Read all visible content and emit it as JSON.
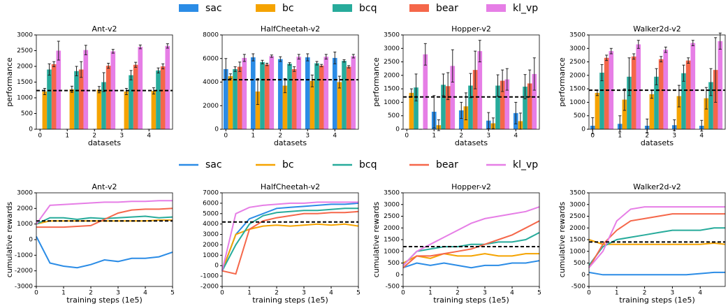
{
  "chart_data": [
    {
      "type": "bar",
      "title": "Ant-v2",
      "xlabel": "datasets",
      "ylabel": "performance",
      "categories": [
        "0",
        "1",
        "2",
        "3",
        "4"
      ],
      "ylim": [
        0,
        3000
      ],
      "yticks": [
        0,
        500,
        1000,
        1500,
        2000,
        2500,
        3000
      ],
      "hline": 1230,
      "series": [
        {
          "name": "sac",
          "color": "#2b8ce6",
          "values": [
            0,
            0,
            0,
            0,
            0
          ],
          "errors": [
            0,
            0,
            0,
            0,
            0
          ]
        },
        {
          "name": "bc",
          "color": "#f5a300",
          "values": [
            1200,
            1270,
            1260,
            1200,
            1220
          ],
          "errors": [
            100,
            100,
            100,
            100,
            100
          ]
        },
        {
          "name": "bcq",
          "color": "#27ab9b",
          "values": [
            1900,
            1850,
            1500,
            1720,
            1870
          ],
          "errors": [
            180,
            150,
            300,
            150,
            80
          ]
        },
        {
          "name": "bear",
          "color": "#f5674a",
          "values": [
            2070,
            1900,
            2020,
            2050,
            2000
          ],
          "errors": [
            80,
            250,
            80,
            80,
            80
          ]
        },
        {
          "name": "kl_vp",
          "color": "#e67ee6",
          "values": [
            2500,
            2520,
            2480,
            2620,
            2650
          ],
          "errors": [
            300,
            150,
            60,
            60,
            70
          ]
        }
      ]
    },
    {
      "type": "bar",
      "title": "HalfCheetah-v2",
      "xlabel": "datasets",
      "ylabel": "",
      "categories": [
        "0",
        "1",
        "2",
        "3",
        "4"
      ],
      "ylim": [
        0,
        8000
      ],
      "yticks": [
        0,
        2000,
        4000,
        6000,
        8000
      ],
      "hline": 4200,
      "series": [
        {
          "name": "sac",
          "color": "#2b8ce6",
          "values": [
            5100,
            6100,
            5950,
            6100,
            6050
          ],
          "errors": [
            900,
            300,
            200,
            300,
            500
          ]
        },
        {
          "name": "bc",
          "color": "#f5a300",
          "values": [
            4500,
            3200,
            3700,
            4100,
            4000
          ],
          "errors": [
            200,
            1100,
            600,
            500,
            500
          ]
        },
        {
          "name": "bcq",
          "color": "#27ab9b",
          "values": [
            5100,
            5700,
            5550,
            5600,
            5800
          ],
          "errors": [
            200,
            150,
            100,
            150,
            100
          ]
        },
        {
          "name": "bear",
          "color": "#f5674a",
          "values": [
            5300,
            5500,
            5100,
            5400,
            5300
          ],
          "errors": [
            400,
            100,
            200,
            100,
            100
          ]
        },
        {
          "name": "kl_vp",
          "color": "#e67ee6",
          "values": [
            6050,
            6200,
            6150,
            6150,
            6200
          ],
          "errors": [
            300,
            100,
            200,
            200,
            150
          ]
        }
      ]
    },
    {
      "type": "bar",
      "title": "Hopper-v2",
      "xlabel": "datasets",
      "ylabel": "performance",
      "categories": [
        "0",
        "1",
        "2",
        "3",
        "4"
      ],
      "ylim": [
        0,
        3500
      ],
      "yticks": [
        0,
        500,
        1000,
        1500,
        2000,
        2500,
        3000,
        3500
      ],
      "hline": 1200,
      "series": [
        {
          "name": "sac",
          "color": "#2b8ce6",
          "values": [
            0,
            650,
            700,
            320,
            600
          ],
          "errors": [
            0,
            600,
            300,
            300,
            400
          ]
        },
        {
          "name": "bc",
          "color": "#f5a300",
          "values": [
            1350,
            150,
            850,
            220,
            300
          ],
          "errors": [
            150,
            200,
            500,
            200,
            300
          ]
        },
        {
          "name": "bcq",
          "color": "#27ab9b",
          "values": [
            1550,
            1650,
            1620,
            1620,
            1580
          ],
          "errors": [
            500,
            400,
            450,
            400,
            450
          ]
        },
        {
          "name": "bear",
          "color": "#f5674a",
          "values": [
            0,
            1600,
            2200,
            1800,
            1700
          ],
          "errors": [
            0,
            500,
            700,
            400,
            500
          ]
        },
        {
          "name": "kl_vp",
          "color": "#e67ee6",
          "values": [
            2780,
            2350,
            2900,
            1850,
            2050
          ],
          "errors": [
            400,
            600,
            400,
            400,
            600
          ]
        }
      ]
    },
    {
      "type": "bar",
      "title": "Walker2d-v2",
      "xlabel": "datasets",
      "ylabel": "performance",
      "categories": [
        "0",
        "1",
        "2",
        "3",
        "4"
      ],
      "ylim": [
        0,
        3500
      ],
      "yticks": [
        0,
        500,
        1000,
        1500,
        2000,
        2500,
        3000,
        3500
      ],
      "hline": 1450,
      "series": [
        {
          "name": "sac",
          "color": "#2b8ce6",
          "values": [
            130,
            200,
            130,
            150,
            130
          ],
          "errors": [
            300,
            300,
            250,
            200,
            200
          ]
        },
        {
          "name": "bc",
          "color": "#f5a300",
          "values": [
            1350,
            1100,
            1300,
            1230,
            1150
          ],
          "errors": [
            100,
            400,
            150,
            400,
            400
          ]
        },
        {
          "name": "bcq",
          "color": "#27ab9b",
          "values": [
            2100,
            1950,
            1950,
            2080,
            1750
          ],
          "errors": [
            300,
            700,
            300,
            300,
            500
          ]
        },
        {
          "name": "bear",
          "color": "#f5674a",
          "values": [
            2650,
            2700,
            2600,
            2550,
            2200
          ],
          "errors": [
            100,
            100,
            100,
            100,
            1200
          ]
        },
        {
          "name": "kl_vp",
          "color": "#e67ee6",
          "values": [
            2900,
            3150,
            2950,
            3200,
            3270
          ],
          "errors": [
            100,
            150,
            100,
            100,
            300
          ]
        }
      ]
    },
    {
      "type": "line",
      "title": "Ant-v2",
      "xlabel": "training steps (1e5)",
      "ylabel": "cumulative rewards",
      "x": [
        0,
        0.5,
        1,
        1.5,
        2,
        2.5,
        3,
        3.5,
        4,
        4.5,
        5
      ],
      "xlim": [
        0,
        5
      ],
      "xticks": [
        0,
        1,
        2,
        3,
        4,
        5
      ],
      "ylim": [
        -3000,
        3000
      ],
      "yticks": [
        -3000,
        -2000,
        -1000,
        0,
        1000,
        2000,
        3000
      ],
      "hline": 1200,
      "series": [
        {
          "name": "sac",
          "color": "#2b8ce6",
          "values": [
            200,
            -1500,
            -1700,
            -1800,
            -1600,
            -1300,
            -1400,
            -1200,
            -1200,
            -1100,
            -800
          ]
        },
        {
          "name": "bc",
          "color": "#f5a300",
          "values": [
            1000,
            1200,
            1200,
            1200,
            1200,
            1200,
            1200,
            1200,
            1200,
            1250,
            1250
          ]
        },
        {
          "name": "bcq",
          "color": "#27ab9b",
          "values": [
            1000,
            1400,
            1400,
            1300,
            1400,
            1350,
            1400,
            1450,
            1500,
            1400,
            1450
          ]
        },
        {
          "name": "bear",
          "color": "#f5674a",
          "values": [
            800,
            800,
            800,
            850,
            900,
            1300,
            1700,
            1900,
            1950,
            1950,
            2000
          ]
        },
        {
          "name": "kl_vp",
          "color": "#e67ee6",
          "values": [
            1000,
            2200,
            2250,
            2300,
            2350,
            2400,
            2400,
            2450,
            2450,
            2500,
            2500
          ]
        }
      ]
    },
    {
      "type": "line",
      "title": "HalfCheetah-v2",
      "xlabel": "training steps (1e5)",
      "ylabel": "",
      "x": [
        0,
        0.5,
        1,
        1.5,
        2,
        2.5,
        3,
        3.5,
        4,
        4.5,
        5
      ],
      "xlim": [
        0,
        5
      ],
      "xticks": [
        0,
        1,
        2,
        3,
        4,
        5
      ],
      "ylim": [
        -2000,
        7000
      ],
      "yticks": [
        -2000,
        -1000,
        0,
        1000,
        2000,
        3000,
        4000,
        5000,
        6000,
        7000
      ],
      "hline": 4200,
      "series": [
        {
          "name": "sac",
          "color": "#2b8ce6",
          "values": [
            -500,
            3000,
            4500,
            5000,
            5500,
            5600,
            5700,
            5800,
            5900,
            5900,
            6000
          ]
        },
        {
          "name": "bc",
          "color": "#f5a300",
          "values": [
            -500,
            3000,
            3500,
            3800,
            3900,
            3800,
            3900,
            4000,
            3900,
            4000,
            3800
          ]
        },
        {
          "name": "bcq",
          "color": "#27ab9b",
          "values": [
            -500,
            2000,
            4000,
            4800,
            5100,
            5200,
            5300,
            5300,
            5400,
            5500,
            5500
          ]
        },
        {
          "name": "bear",
          "color": "#f5674a",
          "values": [
            -500,
            -800,
            3500,
            4300,
            4600,
            4800,
            5000,
            5000,
            5100,
            5100,
            5200
          ]
        },
        {
          "name": "kl_vp",
          "color": "#e67ee6",
          "values": [
            -500,
            5000,
            5600,
            5800,
            5900,
            6000,
            6000,
            6100,
            6100,
            6100,
            6100
          ]
        }
      ]
    },
    {
      "type": "line",
      "title": "Hopper-v2",
      "xlabel": "training steps (1e5)",
      "ylabel": "cumulative rewards",
      "x": [
        0,
        0.5,
        1,
        1.5,
        2,
        2.5,
        3,
        3.5,
        4,
        4.5,
        5
      ],
      "xlim": [
        0,
        5
      ],
      "xticks": [
        0,
        1,
        2,
        3,
        4,
        5
      ],
      "ylim": [
        -500,
        3500
      ],
      "yticks": [
        -500,
        0,
        500,
        1000,
        1500,
        2000,
        2500,
        3000,
        3500
      ],
      "hline": 1200,
      "series": [
        {
          "name": "sac",
          "color": "#2b8ce6",
          "values": [
            300,
            500,
            400,
            500,
            400,
            300,
            400,
            400,
            500,
            500,
            600
          ]
        },
        {
          "name": "bc",
          "color": "#f5a300",
          "values": [
            500,
            800,
            700,
            900,
            800,
            800,
            900,
            800,
            800,
            900,
            900
          ]
        },
        {
          "name": "bcq",
          "color": "#27ab9b",
          "values": [
            400,
            1000,
            1100,
            1200,
            1200,
            1300,
            1300,
            1400,
            1400,
            1500,
            1800
          ]
        },
        {
          "name": "bear",
          "color": "#f5674a",
          "values": [
            300,
            800,
            800,
            900,
            1000,
            1100,
            1300,
            1500,
            1700,
            2000,
            2300
          ]
        },
        {
          "name": "kl_vp",
          "color": "#e67ee6",
          "values": [
            400,
            1000,
            1300,
            1600,
            1900,
            2200,
            2400,
            2500,
            2600,
            2700,
            2900
          ]
        }
      ]
    },
    {
      "type": "line",
      "title": "Walker2d-v2",
      "xlabel": "training steps (1e5)",
      "ylabel": "cumulative rewards",
      "x": [
        0,
        0.5,
        1,
        1.5,
        2,
        2.5,
        3,
        3.5,
        4,
        4.5,
        4.9
      ],
      "xlim": [
        0,
        4.9
      ],
      "xticks": [
        0,
        1,
        2,
        3,
        4
      ],
      "ylim": [
        -500,
        3500
      ],
      "yticks": [
        -500,
        0,
        500,
        1000,
        1500,
        2000,
        2500,
        3000,
        3500
      ],
      "hline": 1400,
      "series": [
        {
          "name": "sac",
          "color": "#2b8ce6",
          "values": [
            100,
            0,
            0,
            0,
            0,
            0,
            0,
            0,
            50,
            100,
            100
          ]
        },
        {
          "name": "bc",
          "color": "#f5a300",
          "values": [
            1500,
            1300,
            1300,
            1300,
            1300,
            1300,
            1300,
            1300,
            1300,
            1350,
            1300
          ]
        },
        {
          "name": "bcq",
          "color": "#27ab9b",
          "values": [
            400,
            1200,
            1500,
            1600,
            1700,
            1800,
            1900,
            1900,
            1900,
            2000,
            2000
          ]
        },
        {
          "name": "bear",
          "color": "#f5674a",
          "values": [
            300,
            1300,
            1900,
            2300,
            2400,
            2500,
            2600,
            2600,
            2600,
            2600,
            2600
          ]
        },
        {
          "name": "kl_vp",
          "color": "#e67ee6",
          "values": [
            300,
            1000,
            2300,
            2800,
            2900,
            2900,
            2900,
            2900,
            2900,
            2900,
            2900
          ]
        }
      ]
    }
  ]
}
